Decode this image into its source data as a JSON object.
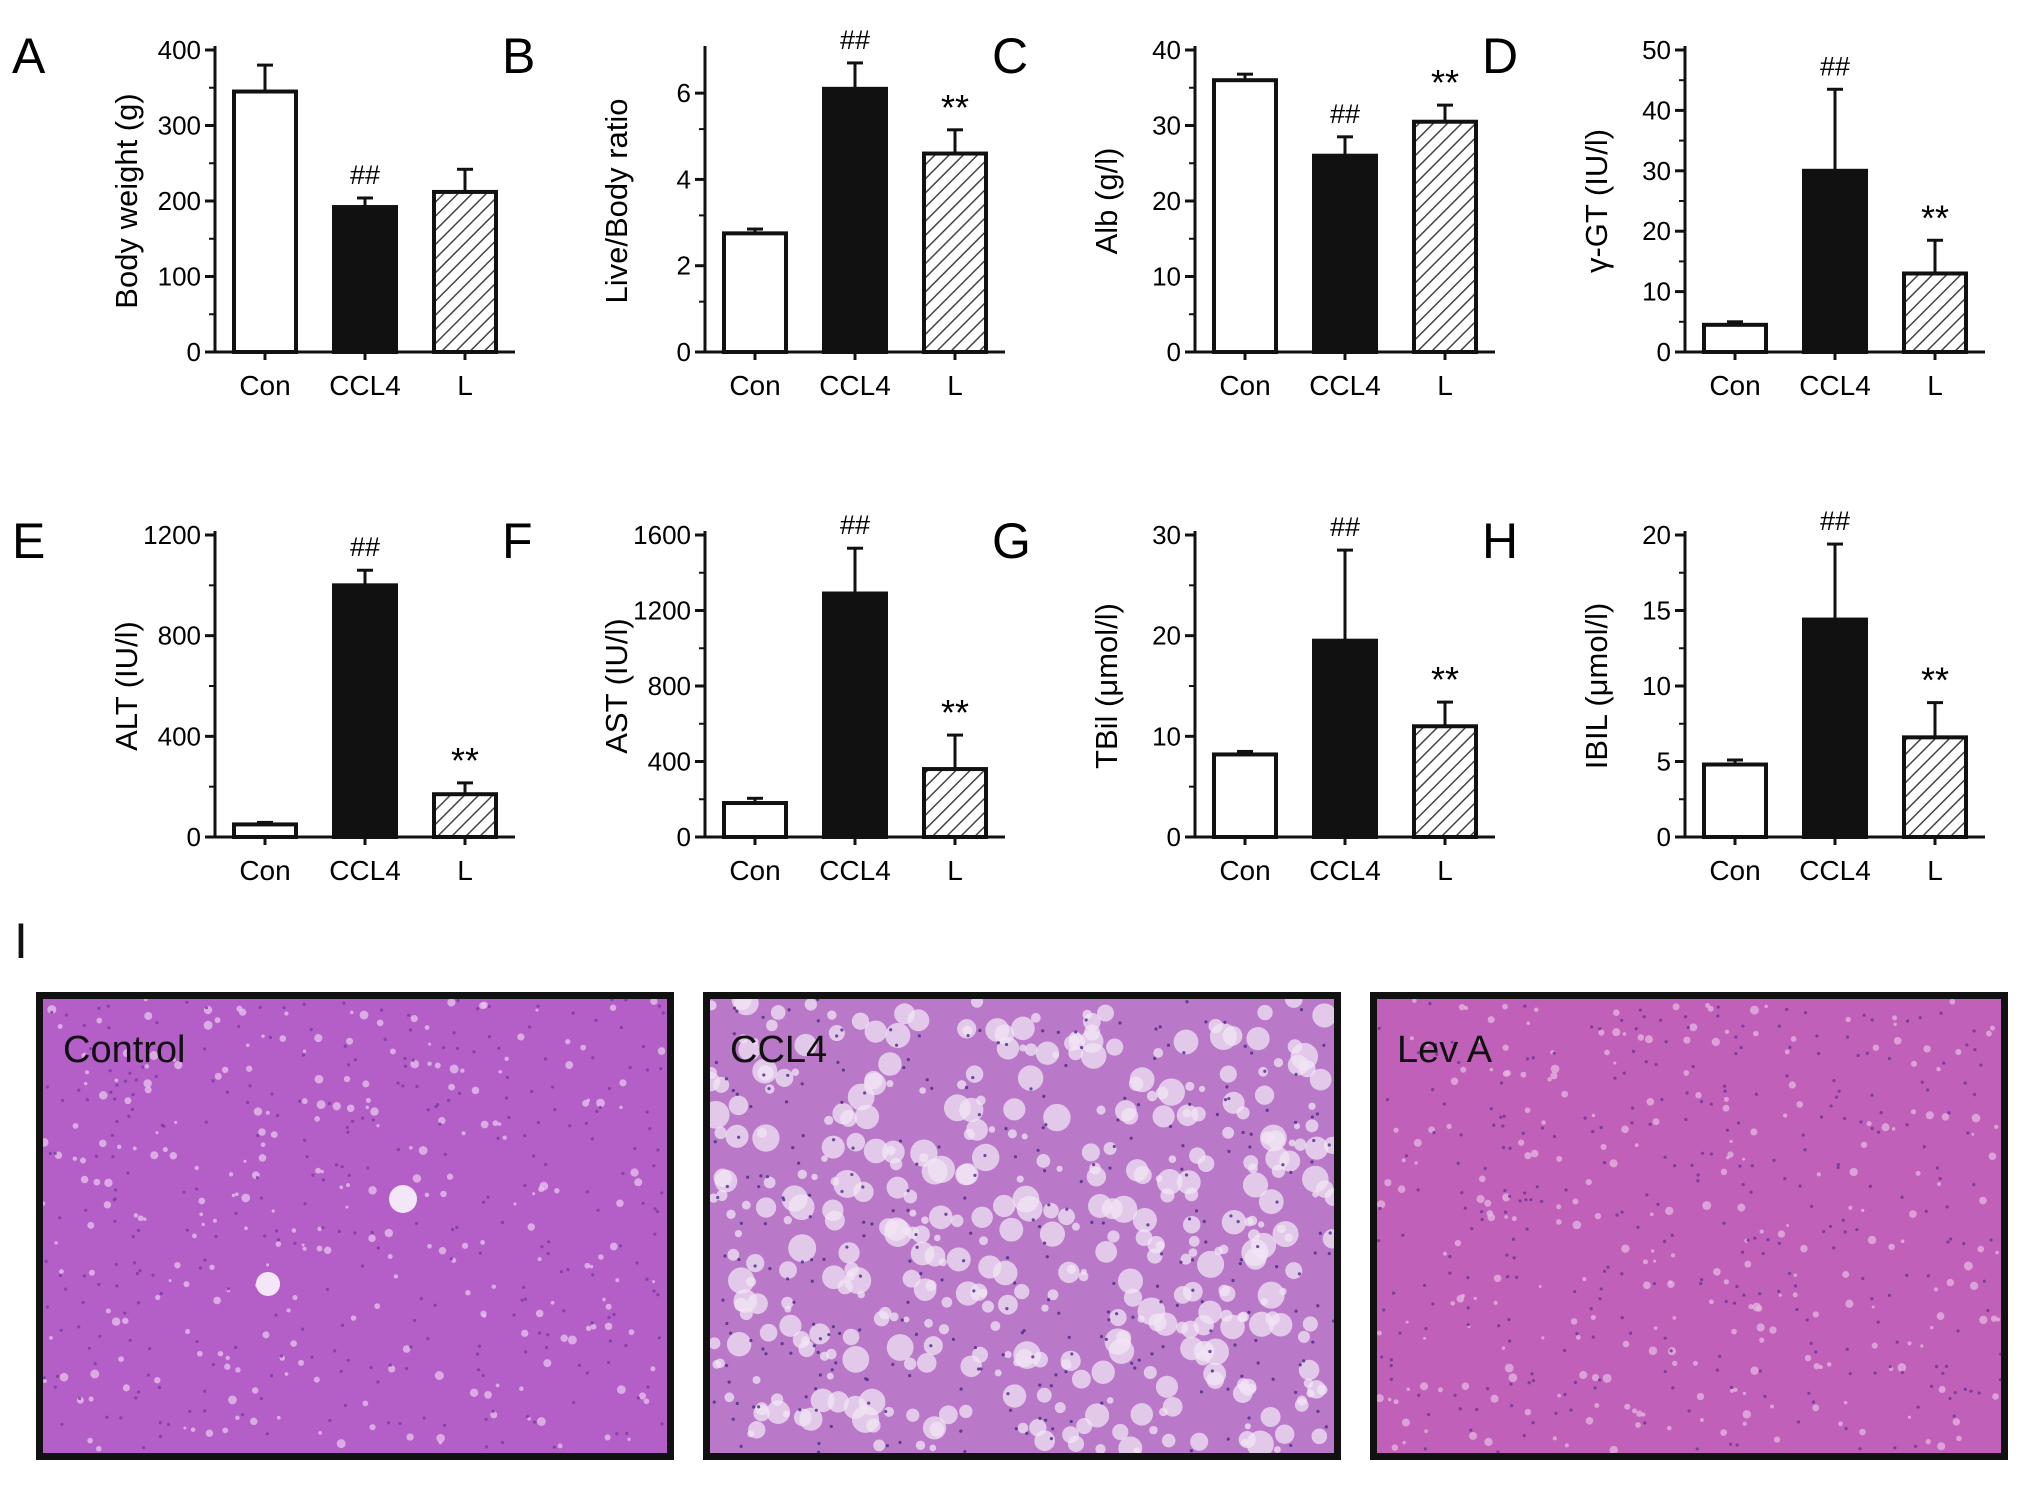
{
  "hatch_color": "#444444",
  "charts": [
    {
      "letter": "A",
      "type": "bar",
      "categories": [
        "Con",
        "CCL4",
        "L"
      ],
      "ylabel": "Body weight (g)",
      "ylim": [
        0,
        400
      ],
      "ticks": [
        "0",
        "100",
        "200",
        "300",
        "400"
      ],
      "values": [
        345,
        192,
        212
      ],
      "errors": [
        35,
        12,
        30
      ],
      "fills": [
        "white",
        "black",
        "hatch"
      ],
      "annotations": [
        "",
        "##",
        ""
      ]
    },
    {
      "letter": "B",
      "type": "bar",
      "categories": [
        "Con",
        "CCL4",
        "L"
      ],
      "ylabel": "Live/Body ratio",
      "ylim": [
        0,
        7
      ],
      "ticks": [
        "0",
        "2",
        "4",
        "6"
      ],
      "values": [
        2.75,
        6.1,
        4.6
      ],
      "errors": [
        0.1,
        0.6,
        0.55
      ],
      "fills": [
        "white",
        "black",
        "hatch"
      ],
      "annotations": [
        "",
        "##",
        "**"
      ]
    },
    {
      "letter": "C",
      "type": "bar",
      "categories": [
        "Con",
        "CCL4",
        "L"
      ],
      "ylabel": "Alb (g/l)",
      "ylim": [
        0,
        40
      ],
      "ticks": [
        "0",
        "10",
        "20",
        "30",
        "40"
      ],
      "values": [
        36,
        26,
        30.5
      ],
      "errors": [
        0.8,
        2.5,
        2.2
      ],
      "fills": [
        "white",
        "black",
        "hatch"
      ],
      "annotations": [
        "",
        "##",
        "**"
      ]
    },
    {
      "letter": "D",
      "type": "bar",
      "categories": [
        "Con",
        "CCL4",
        "L"
      ],
      "ylabel": "γ-GT (IU/l)",
      "ylim": [
        0,
        50
      ],
      "ticks": [
        "0",
        "10",
        "20",
        "30",
        "40",
        "50"
      ],
      "values": [
        4.5,
        30,
        13
      ],
      "errors": [
        0.5,
        13.5,
        5.5
      ],
      "fills": [
        "white",
        "black",
        "hatch"
      ],
      "annotations": [
        "",
        "##",
        "**"
      ]
    },
    {
      "letter": "E",
      "type": "bar",
      "categories": [
        "Con",
        "CCL4",
        "L"
      ],
      "ylabel": "ALT (IU/l)",
      "ylim": [
        0,
        1200
      ],
      "ticks": [
        "0",
        "400",
        "800",
        "1200"
      ],
      "values": [
        50,
        1000,
        170
      ],
      "errors": [
        8,
        60,
        45
      ],
      "fills": [
        "white",
        "black",
        "hatch"
      ],
      "annotations": [
        "",
        "##",
        "**"
      ]
    },
    {
      "letter": "F",
      "type": "bar",
      "categories": [
        "Con",
        "CCL4",
        "L"
      ],
      "ylabel": "AST (IU/l)",
      "ylim": [
        0,
        1600
      ],
      "ticks": [
        "0",
        "400",
        "800",
        "1200",
        "1600"
      ],
      "values": [
        180,
        1290,
        360
      ],
      "errors": [
        25,
        240,
        180
      ],
      "fills": [
        "white",
        "black",
        "hatch"
      ],
      "annotations": [
        "",
        "##",
        "**"
      ]
    },
    {
      "letter": "G",
      "type": "bar",
      "categories": [
        "Con",
        "CCL4",
        "L"
      ],
      "ylabel": "TBil (μmol/l)",
      "ylim": [
        0,
        30
      ],
      "ticks": [
        "0",
        "10",
        "20",
        "30"
      ],
      "values": [
        8.2,
        19.5,
        11
      ],
      "errors": [
        0.3,
        9,
        2.4
      ],
      "fills": [
        "white",
        "black",
        "hatch"
      ],
      "annotations": [
        "",
        "##",
        "**"
      ]
    },
    {
      "letter": "H",
      "type": "bar",
      "categories": [
        "Con",
        "CCL4",
        "L"
      ],
      "ylabel": "IBIL (μmol/l)",
      "ylim": [
        0,
        20
      ],
      "ticks": [
        "0",
        "5",
        "10",
        "15",
        "20"
      ],
      "values": [
        4.8,
        14.4,
        6.6
      ],
      "errors": [
        0.3,
        5,
        2.3
      ],
      "fills": [
        "white",
        "black",
        "hatch"
      ],
      "annotations": [
        "",
        "##",
        "**"
      ]
    }
  ],
  "histology": {
    "letter": "I",
    "panels": [
      {
        "label": "Control",
        "tint": "#b45fc8",
        "speckle": "#e8c4ec",
        "dots": "#7a3aa0"
      },
      {
        "label": "CCL4",
        "tint": "#b978c8",
        "speckle": "#f1e4f4",
        "dots": "#4a2a8a"
      },
      {
        "label": "Lev A",
        "tint": "#c060b8",
        "speckle": "#e6b8e2",
        "dots": "#6a3498"
      }
    ]
  }
}
